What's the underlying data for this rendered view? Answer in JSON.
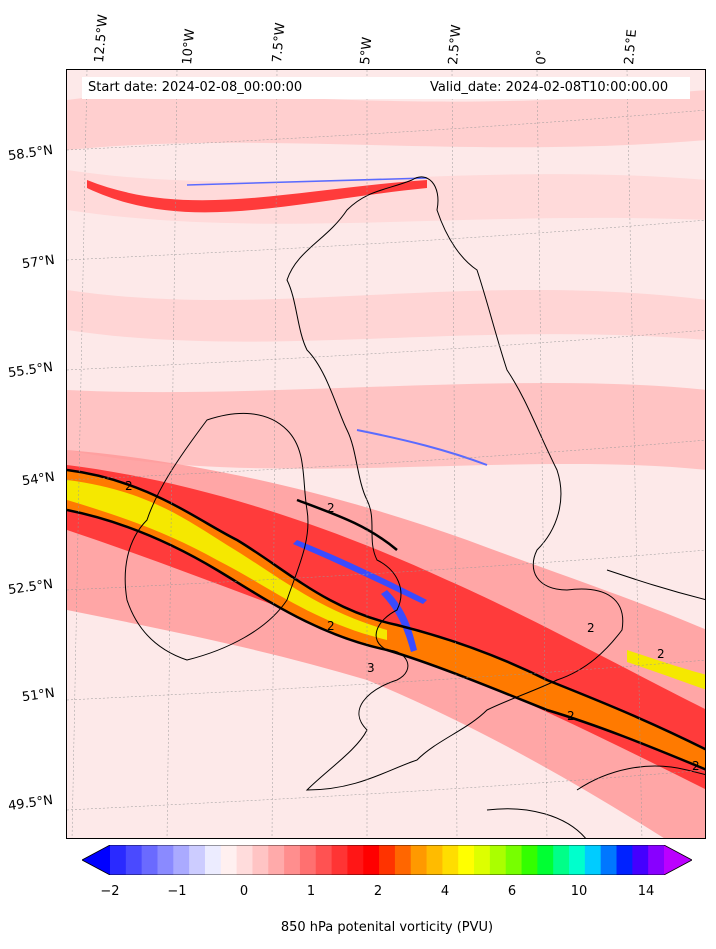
{
  "map": {
    "start_date": "Start date: 2024-02-08_00:00:00",
    "valid_date": "Valid_date: 2024-02-08T10:00:00.00",
    "longitude_labels": [
      "12.5°W",
      "10°W",
      "7.5°W",
      "5°W",
      "2.5°W",
      "0°",
      "2.5°E"
    ],
    "latitude_labels": [
      "58.5°N",
      "57°N",
      "55.5°N",
      "54°N",
      "52.5°N",
      "51°N",
      "49.5°N"
    ],
    "contour_labels": [
      "2",
      "2",
      "2",
      "3",
      "2",
      "2",
      "2",
      "2"
    ],
    "colors": {
      "background": "#fde9e9",
      "band_red": "#ff2a2a",
      "band_orange": "#ff8c00",
      "band_yellow": "#f5e800",
      "negative_blue": "#3a4bff",
      "coastline": "#000000"
    }
  },
  "colorbar": {
    "ticks": [
      "−2",
      "−1",
      "0",
      "1",
      "2",
      "4",
      "6",
      "10",
      "14"
    ],
    "label": "850 hPa potenital vorticity (PVU)",
    "colors": [
      "#0000ff",
      "#2a2aff",
      "#4a4aff",
      "#6a6aff",
      "#8a8aff",
      "#aaaaff",
      "#ccccff",
      "#ececff",
      "#fff0f0",
      "#ffdcdc",
      "#ffc4c4",
      "#ffaaaa",
      "#ff8e8e",
      "#ff7070",
      "#ff5252",
      "#ff3434",
      "#ff1616",
      "#ff0000",
      "#ff3300",
      "#ff6600",
      "#ff9900",
      "#ffbb00",
      "#ffdd00",
      "#ffff00",
      "#ddff00",
      "#aaff00",
      "#77ff00",
      "#33ff00",
      "#00ff33",
      "#00ff88",
      "#00ffcc",
      "#00ccff",
      "#0077ff",
      "#0022ff",
      "#4400ff",
      "#8800ff",
      "#bb00ff"
    ]
  }
}
